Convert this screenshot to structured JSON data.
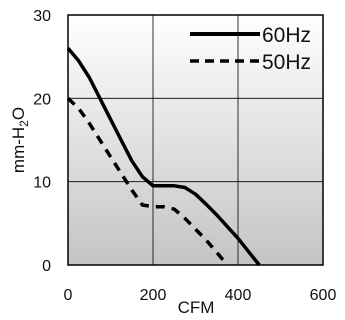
{
  "chart_data": {
    "type": "line",
    "xlabel": "CFM",
    "ylabel": "mm-H2O",
    "ylabel_parts": {
      "base": "mm-H",
      "sub": "2",
      "tail": "O"
    },
    "xlim": [
      0,
      600
    ],
    "ylim": [
      0,
      30
    ],
    "x_ticks": [
      0,
      200,
      400,
      600
    ],
    "y_ticks": [
      0,
      10,
      20,
      30
    ],
    "grid": true,
    "legend_position": "top-right",
    "background": "vertical gradient, white to gray",
    "series": [
      {
        "name": "60Hz",
        "style": "solid",
        "color": "#000000",
        "x": [
          0,
          25,
          50,
          75,
          100,
          125,
          150,
          175,
          200,
          225,
          250,
          275,
          300,
          325,
          350,
          375,
          400,
          425,
          450
        ],
        "y": [
          26,
          24.5,
          22.5,
          20,
          17.5,
          15,
          12.5,
          10.6,
          9.5,
          9.5,
          9.5,
          9.3,
          8.5,
          7.3,
          6,
          4.6,
          3.2,
          1.6,
          0
        ]
      },
      {
        "name": "50Hz",
        "style": "dashed",
        "color": "#000000",
        "x": [
          0,
          25,
          50,
          75,
          100,
          125,
          150,
          175,
          200,
          225,
          250,
          275,
          300,
          325,
          350,
          375
        ],
        "y": [
          20,
          18.8,
          17,
          15,
          13,
          11,
          9,
          7.2,
          7,
          7,
          6.7,
          5.6,
          4.3,
          3,
          1.5,
          0
        ]
      }
    ]
  }
}
